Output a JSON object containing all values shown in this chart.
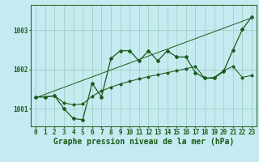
{
  "title": "Graphe pression niveau de la mer (hPa)",
  "bg_color": "#c5eaf0",
  "grid_color": "#99ccbb",
  "line_color": "#1a5c1a",
  "xlim": [
    -0.5,
    23.5
  ],
  "ylim": [
    1000.55,
    1003.65
  ],
  "yticks": [
    1001,
    1002,
    1003
  ],
  "xticks": [
    0,
    1,
    2,
    3,
    4,
    5,
    6,
    7,
    8,
    9,
    10,
    11,
    12,
    13,
    14,
    15,
    16,
    17,
    18,
    19,
    20,
    21,
    22,
    23
  ],
  "tick_fontsize": 5.5,
  "title_fontsize": 7.0,
  "series_zigzag": [
    1001.3,
    1001.3,
    1001.33,
    1001.0,
    1000.75,
    1000.72,
    1001.65,
    1001.3,
    1002.28,
    1002.48,
    1002.48,
    1002.22,
    1002.48,
    1002.22,
    1002.48,
    1002.32,
    1002.32,
    1001.92,
    1001.78,
    1001.78,
    1001.95,
    1002.5,
    1003.02,
    1003.35
  ],
  "series_smooth": [
    1001.3,
    1001.3,
    1001.33,
    1001.15,
    1001.1,
    1001.12,
    1001.32,
    1001.45,
    1001.55,
    1001.63,
    1001.7,
    1001.76,
    1001.82,
    1001.87,
    1001.92,
    1001.97,
    1002.02,
    1002.08,
    1001.78,
    1001.8,
    1001.97,
    1002.08,
    1001.8,
    1001.85
  ],
  "trend_x": [
    0,
    23
  ],
  "trend_y": [
    1001.28,
    1003.32
  ]
}
